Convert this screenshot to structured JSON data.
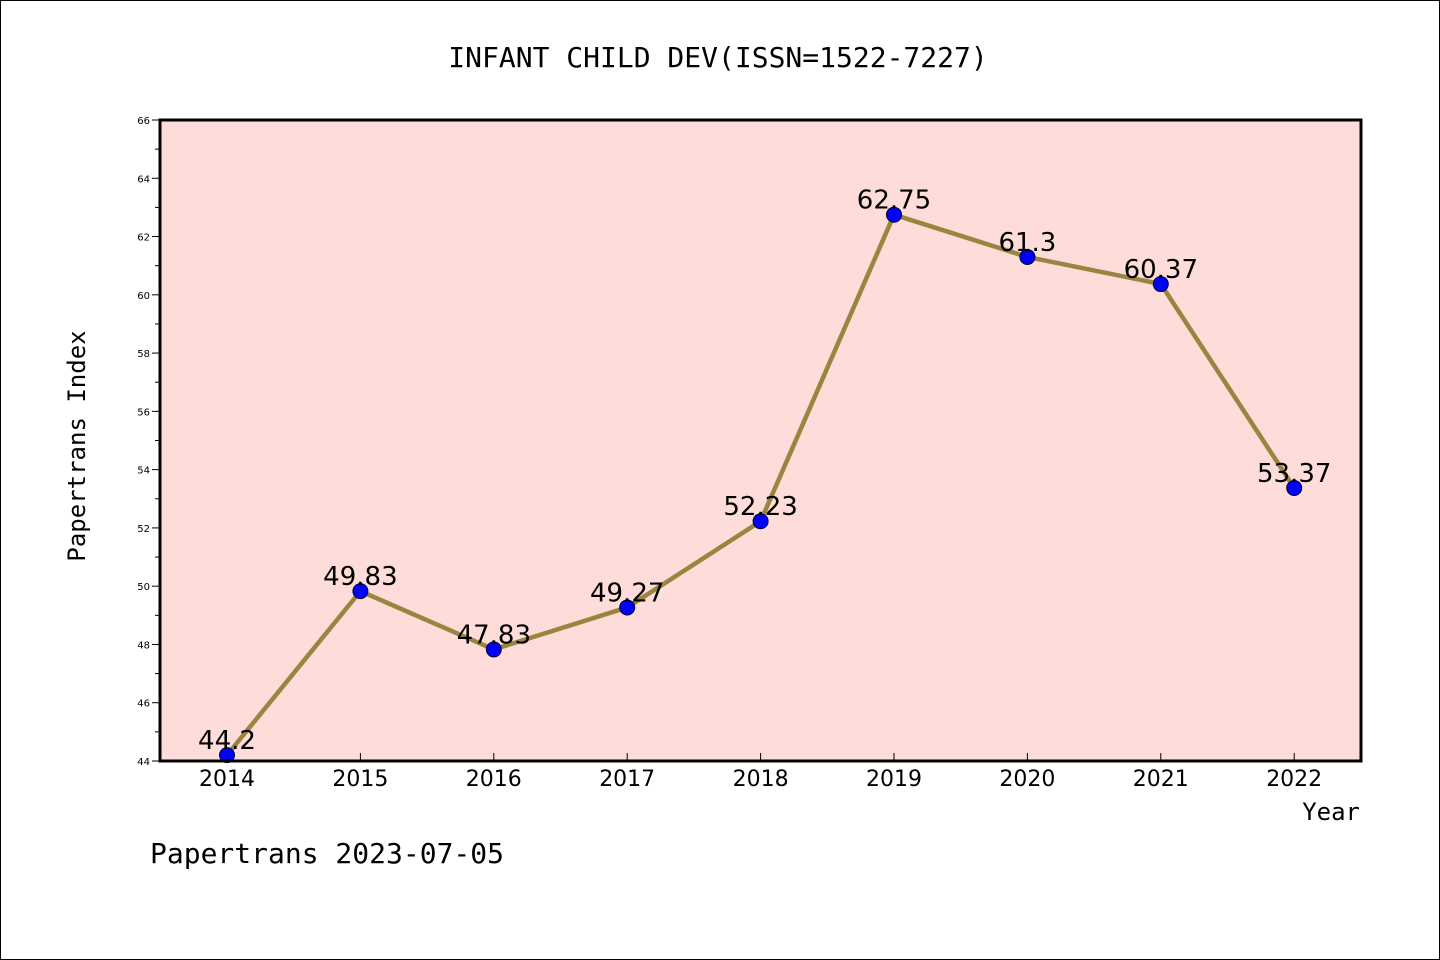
{
  "chart_data": {
    "type": "line",
    "title": "INFANT CHILD DEV(ISSN=1522-7227)",
    "xlabel": "Year",
    "ylabel": "Papertrans Index",
    "categories": [
      "2014",
      "2015",
      "2016",
      "2017",
      "2018",
      "2019",
      "2020",
      "2021",
      "2022"
    ],
    "values": [
      44.2,
      49.83,
      47.83,
      49.27,
      52.23,
      62.75,
      61.3,
      60.37,
      53.37
    ],
    "data_labels": [
      "44.2",
      "49.83",
      "47.83",
      "49.27",
      "52.23",
      "62.75",
      "61.3",
      "60.37",
      "53.37"
    ],
    "ylim": [
      44,
      66
    ],
    "yticks": [
      "44",
      "46",
      "48",
      "50",
      "52",
      "54",
      "56",
      "58",
      "60",
      "62",
      "64",
      "66"
    ],
    "grid": false,
    "legend": "none",
    "colors": {
      "plot_background": "#fddcd9",
      "line": "#9a8540",
      "marker": "#0000ff"
    }
  },
  "footer": "Papertrans 2023-07-05"
}
